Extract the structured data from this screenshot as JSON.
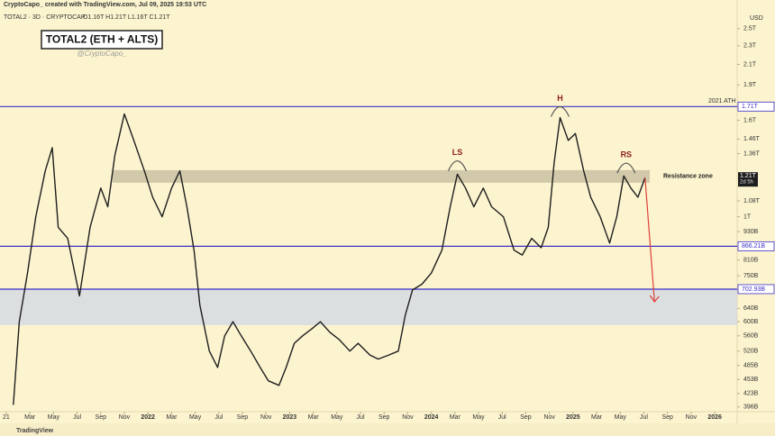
{
  "chart_data": {
    "type": "line",
    "header": "CryptoCapo_ created with TradingView.com, Jul 09, 2025 19:53 UTC",
    "symbol": "TOTAL2 · 3D · CRYPTOCAP",
    "ohlc": "O1.16T H1.21T L1.16T C1.21T",
    "title": "TOTAL2 (ETH + ALTS)",
    "subtitle": "@CryptoCapo_",
    "y_unit": "USD",
    "footer": "TradingView",
    "log_scale": true,
    "grid": false,
    "xlim": [
      -0.53,
      61.9
    ],
    "ylim": [
      382,
      2750
    ],
    "xticks": [
      {
        "value": 0,
        "label": "21"
      },
      {
        "value": 2,
        "label": "Mar"
      },
      {
        "value": 4,
        "label": "May"
      },
      {
        "value": 6,
        "label": "Jul"
      },
      {
        "value": 8,
        "label": "Sep"
      },
      {
        "value": 10,
        "label": "Nov"
      },
      {
        "value": 12,
        "label": "2022"
      },
      {
        "value": 14,
        "label": "Mar"
      },
      {
        "value": 16,
        "label": "May"
      },
      {
        "value": 18,
        "label": "Jul"
      },
      {
        "value": 20,
        "label": "Sep"
      },
      {
        "value": 22,
        "label": "Nov"
      },
      {
        "value": 24,
        "label": "2023"
      },
      {
        "value": 26,
        "label": "Mar"
      },
      {
        "value": 28,
        "label": "May"
      },
      {
        "value": 30,
        "label": "Jul"
      },
      {
        "value": 32,
        "label": "Sep"
      },
      {
        "value": 34,
        "label": "Nov"
      },
      {
        "value": 36,
        "label": "2024"
      },
      {
        "value": 38,
        "label": "Mar"
      },
      {
        "value": 40,
        "label": "May"
      },
      {
        "value": 42,
        "label": "Jul"
      },
      {
        "value": 44,
        "label": "Sep"
      },
      {
        "value": 46,
        "label": "Nov"
      },
      {
        "value": 48,
        "label": "2025"
      },
      {
        "value": 50,
        "label": "Mar"
      },
      {
        "value": 52,
        "label": "May"
      },
      {
        "value": 54,
        "label": "Jul"
      },
      {
        "value": 56,
        "label": "Sep"
      },
      {
        "value": 58,
        "label": "Nov"
      },
      {
        "value": 60,
        "label": "2026"
      }
    ],
    "yticks": [
      {
        "value": 2500,
        "label": "2.5T"
      },
      {
        "value": 2300,
        "label": "2.3T"
      },
      {
        "value": 2100,
        "label": "2.1T"
      },
      {
        "value": 1900,
        "label": "1.9T"
      },
      {
        "value": 1600,
        "label": "1.6T"
      },
      {
        "value": 1460,
        "label": "1.46T"
      },
      {
        "value": 1360,
        "label": "1.36T"
      },
      {
        "value": 1080,
        "label": "1.08T"
      },
      {
        "value": 1000,
        "label": "1T"
      },
      {
        "value": 930,
        "label": "930B"
      },
      {
        "value": 810,
        "label": "810B"
      },
      {
        "value": 750,
        "label": "750B"
      },
      {
        "value": 640,
        "label": "640B"
      },
      {
        "value": 600,
        "label": "600B"
      },
      {
        "value": 560,
        "label": "560B"
      },
      {
        "value": 520,
        "label": "520B"
      },
      {
        "value": 485,
        "label": "485B"
      },
      {
        "value": 453,
        "label": "453B"
      },
      {
        "value": 423,
        "label": "423B"
      },
      {
        "value": 396,
        "label": "396B"
      }
    ],
    "series": [
      {
        "name": "TOTAL2",
        "color": "#1e1e1e",
        "x": [
          0.6,
          1.1,
          1.8,
          2.5,
          3.3,
          3.9,
          4.4,
          5.2,
          6.2,
          7.1,
          8.0,
          8.6,
          9.2,
          10.0,
          10.8,
          11.7,
          12.4,
          13.2,
          14.0,
          14.7,
          15.3,
          15.9,
          16.4,
          17.2,
          17.9,
          18.5,
          19.2,
          19.9,
          20.7,
          21.5,
          22.2,
          23.1,
          23.7,
          24.4,
          25.1,
          25.9,
          26.6,
          27.4,
          28.2,
          29.1,
          29.8,
          30.8,
          31.5,
          32.4,
          33.2,
          33.8,
          34.4,
          35.2,
          36.0,
          36.9,
          37.6,
          38.2,
          38.9,
          39.6,
          40.4,
          41.1,
          42.1,
          43.0,
          43.7,
          44.5,
          45.3,
          45.9,
          46.4,
          46.9,
          47.6,
          48.2,
          48.9,
          49.5,
          50.3,
          51.1,
          51.7,
          52.3,
          52.9,
          53.5,
          54.1
        ],
        "values": [
          400,
          600,
          760,
          1000,
          1250,
          1400,
          950,
          900,
          680,
          950,
          1150,
          1050,
          1350,
          1650,
          1450,
          1250,
          1100,
          1000,
          1150,
          1250,
          1050,
          850,
          650,
          520,
          480,
          560,
          600,
          560,
          520,
          480,
          450,
          440,
          480,
          540,
          560,
          580,
          600,
          570,
          550,
          520,
          540,
          510,
          500,
          510,
          520,
          620,
          700,
          720,
          760,
          850,
          1050,
          1230,
          1150,
          1050,
          1150,
          1050,
          1000,
          850,
          830,
          900,
          860,
          950,
          1300,
          1620,
          1450,
          1500,
          1250,
          1100,
          1000,
          880,
          1000,
          1220,
          1150,
          1100,
          1210
        ]
      }
    ],
    "levels": [
      {
        "value": 1710,
        "label": "1.71T",
        "color": "#3b2fc9"
      },
      {
        "value": 866.21,
        "label": "866.21B",
        "color": "#3b2fc9"
      },
      {
        "value": 702.93,
        "label": "702.93B",
        "color": "#3b2fc9"
      }
    ],
    "ath_label": "2021 ATH",
    "resistance_zone": {
      "from": 1180,
      "to": 1255,
      "label": "Resistance zone",
      "color": "#cdc4a6"
    },
    "support_zone": {
      "from": 590,
      "to": 702.93,
      "color": "#d5dbe3"
    },
    "current_price": {
      "value": 1210,
      "label": "1.21T",
      "countdown": "2d 5h"
    },
    "annotations": [
      {
        "text": "LS",
        "x": 38.2,
        "value": 1365
      },
      {
        "text": "H",
        "x": 46.9,
        "value": 1777
      },
      {
        "text": "RS",
        "x": 52.5,
        "value": 1350
      }
    ],
    "arrow": {
      "x": [
        54.1,
        54.9
      ],
      "values": [
        1210,
        661
      ],
      "color": "#e0403a"
    }
  }
}
